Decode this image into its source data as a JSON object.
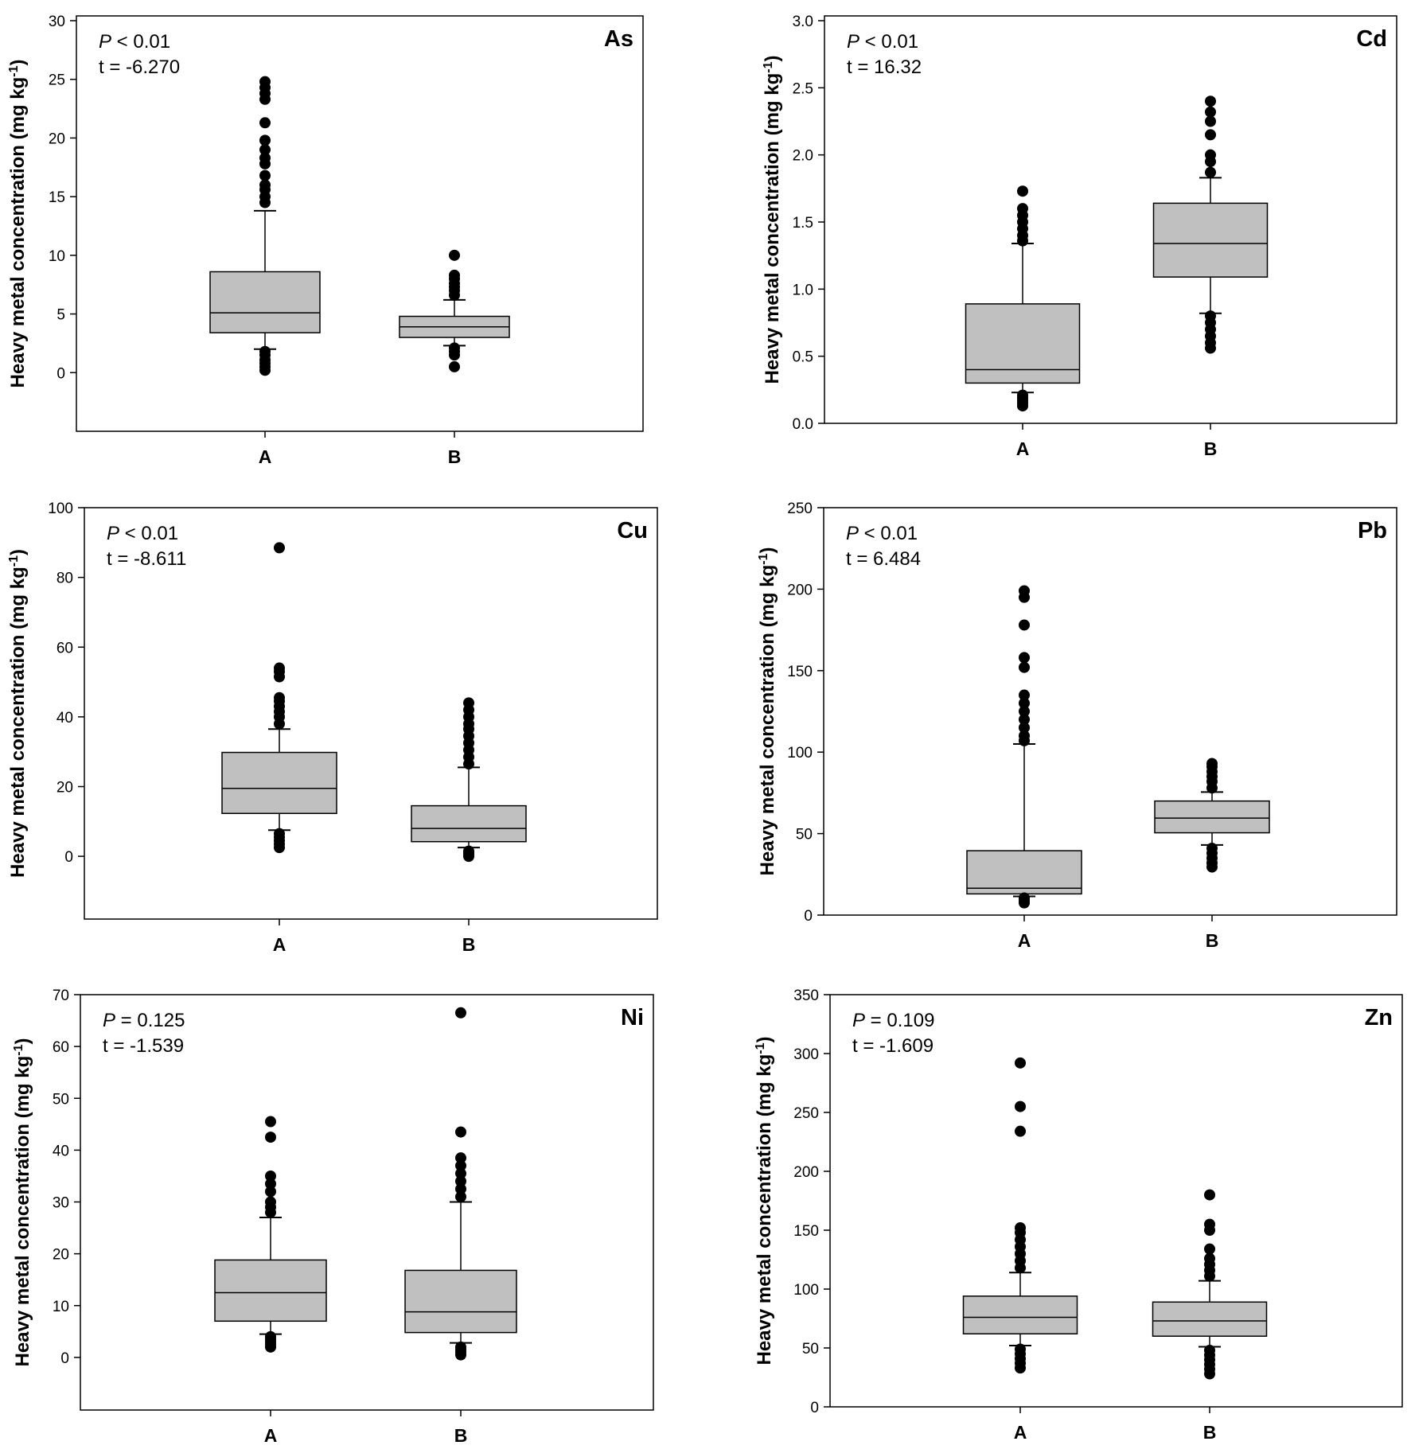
{
  "figure": {
    "ylabel_prefix": "Heavy metal concentration (mg kg",
    "ylabel_sup": "-1",
    "ylabel_suffix": ")"
  },
  "chart_data": [
    {
      "type": "box",
      "title": "As",
      "p_label": "P",
      "p_op": "< 0.01",
      "t_text": "t = -6.270",
      "xlabel": "",
      "ylabel": "Heavy metal concentration (mg kg-1)",
      "ylim": [
        -5,
        30
      ],
      "yticks": [
        0,
        5,
        10,
        15,
        20,
        25,
        30
      ],
      "categories": [
        "A",
        "B"
      ],
      "boxes": [
        {
          "q1": 3.4,
          "median": 5.1,
          "q3": 8.6,
          "whisker_low": 2.0,
          "whisker_high": 13.8,
          "outliers": [
            0.2,
            0.5,
            0.8,
            1.1,
            1.5,
            1.8,
            14.5,
            15.0,
            15.6,
            16.0,
            16.8,
            17.8,
            18.3,
            19.0,
            19.8,
            21.3,
            23.3,
            23.8,
            24.3,
            24.8
          ]
        },
        {
          "q1": 3.0,
          "median": 3.9,
          "q3": 4.8,
          "whisker_low": 2.3,
          "whisker_high": 6.2,
          "outliers": [
            0.5,
            1.5,
            1.8,
            2.1,
            6.6,
            7.0,
            7.3,
            7.6,
            8.0,
            8.3,
            10.0
          ]
        }
      ]
    },
    {
      "type": "box",
      "title": "Cd",
      "p_label": "P",
      "p_op": "< 0.01",
      "t_text": "t = 16.32",
      "xlabel": "",
      "ylabel": "Heavy metal concentration (mg kg-1)",
      "ylim": [
        0,
        3.0
      ],
      "yticks": [
        "0.0",
        "0.5",
        "1.0",
        "1.5",
        "2.0",
        "2.5",
        "3.0"
      ],
      "categories": [
        "A",
        "B"
      ],
      "boxes": [
        {
          "q1": 0.3,
          "median": 0.4,
          "q3": 0.89,
          "whisker_low": 0.23,
          "whisker_high": 1.34,
          "outliers": [
            0.13,
            0.15,
            0.17,
            0.19,
            0.21,
            1.36,
            1.4,
            1.45,
            1.5,
            1.55,
            1.6,
            1.73
          ]
        },
        {
          "q1": 1.09,
          "median": 1.34,
          "q3": 1.64,
          "whisker_low": 0.82,
          "whisker_high": 1.83,
          "outliers": [
            0.56,
            0.6,
            0.65,
            0.7,
            0.75,
            0.8,
            1.87,
            1.95,
            2.0,
            2.15,
            2.25,
            2.32,
            2.4
          ]
        }
      ]
    },
    {
      "type": "box",
      "title": "Cu",
      "p_label": "P",
      "p_op": "< 0.01",
      "t_text": "t = -8.611",
      "xlabel": "",
      "ylabel": "Heavy metal concentration (mg kg-1)",
      "ylim": [
        -18,
        100
      ],
      "yticks": [
        0,
        20,
        40,
        60,
        80,
        100
      ],
      "categories": [
        "A",
        "B"
      ],
      "boxes": [
        {
          "q1": 12.3,
          "median": 19.5,
          "q3": 29.8,
          "whisker_low": 7.5,
          "whisker_high": 36.5,
          "outliers": [
            2.5,
            3.5,
            4.5,
            5.5,
            6.5,
            38.0,
            40.0,
            41.5,
            43.0,
            44.5,
            45.5,
            51.5,
            53.0,
            54.0,
            88.5
          ]
        },
        {
          "q1": 4.2,
          "median": 8.0,
          "q3": 14.5,
          "whisker_low": 2.5,
          "whisker_high": 25.5,
          "outliers": [
            0.0,
            0.5,
            1.0,
            1.5,
            26.5,
            28.5,
            30.5,
            32.5,
            34.5,
            36.5,
            38.0,
            40.0,
            42.0,
            44.0
          ]
        }
      ]
    },
    {
      "type": "box",
      "title": "Pb",
      "p_label": "P",
      "p_op": "< 0.01",
      "t_text": "t = 6.484",
      "xlabel": "",
      "ylabel": "Heavy metal concentration (mg kg-1)",
      "ylim": [
        0,
        250
      ],
      "yticks": [
        0,
        50,
        100,
        150,
        200,
        250
      ],
      "categories": [
        "A",
        "B"
      ],
      "boxes": [
        {
          "q1": 13.0,
          "median": 16.5,
          "q3": 39.5,
          "whisker_low": 11.5,
          "whisker_high": 105.0,
          "outliers": [
            7.5,
            9.0,
            10.5,
            107.0,
            110.0,
            115.0,
            120.0,
            125.0,
            130.0,
            135.0,
            152.0,
            158.0,
            178.0,
            195.0,
            199.0
          ]
        },
        {
          "q1": 50.5,
          "median": 59.5,
          "q3": 70.0,
          "whisker_low": 43.0,
          "whisker_high": 75.5,
          "outliers": [
            29.5,
            32.0,
            35.0,
            38.0,
            41.0,
            78.0,
            82.0,
            85.0,
            88.0,
            91.0,
            93.0
          ]
        }
      ]
    },
    {
      "type": "box",
      "title": "Ni",
      "p_label": "P",
      "p_op": "= 0.125",
      "t_text": "t = -1.539",
      "xlabel": "",
      "ylabel": "Heavy metal concentration (mg kg-1)",
      "ylim": [
        -10,
        70
      ],
      "yticks": [
        0,
        10,
        20,
        30,
        40,
        50,
        60,
        70
      ],
      "categories": [
        "A",
        "B"
      ],
      "boxes": [
        {
          "q1": 7.0,
          "median": 12.5,
          "q3": 18.8,
          "whisker_low": 4.5,
          "whisker_high": 27.0,
          "outliers": [
            2.0,
            2.5,
            3.0,
            3.5,
            4.0,
            28.0,
            29.0,
            30.0,
            32.0,
            33.5,
            35.0,
            42.5,
            45.5
          ]
        },
        {
          "q1": 4.8,
          "median": 8.8,
          "q3": 16.8,
          "whisker_low": 2.8,
          "whisker_high": 30.0,
          "outliers": [
            0.5,
            1.0,
            1.5,
            2.0,
            31.0,
            32.5,
            34.0,
            35.5,
            37.0,
            38.5,
            43.5,
            66.5
          ]
        }
      ]
    },
    {
      "type": "box",
      "title": "Zn",
      "p_label": "P",
      "p_op": "= 0.109",
      "t_text": "t = -1.609",
      "xlabel": "",
      "ylabel": "Heavy metal concentration (mg kg-1)",
      "ylim": [
        0,
        350
      ],
      "yticks": [
        0,
        50,
        100,
        150,
        200,
        250,
        300,
        350
      ],
      "categories": [
        "A",
        "B"
      ],
      "boxes": [
        {
          "q1": 62.0,
          "median": 76.0,
          "q3": 94.0,
          "whisker_low": 52.0,
          "whisker_high": 114.0,
          "outliers": [
            33.0,
            37.0,
            41.0,
            45.0,
            49.0,
            118.0,
            124.0,
            130.0,
            136.0,
            142.0,
            148.0,
            152.0,
            234.0,
            255.0,
            292.0
          ]
        },
        {
          "q1": 60.0,
          "median": 73.0,
          "q3": 89.0,
          "whisker_low": 51.0,
          "whisker_high": 107.0,
          "outliers": [
            28.0,
            32.0,
            36.0,
            40.0,
            44.0,
            48.0,
            111.0,
            116.0,
            121.0,
            126.0,
            134.0,
            150.0,
            155.0,
            180.0
          ]
        }
      ]
    }
  ]
}
